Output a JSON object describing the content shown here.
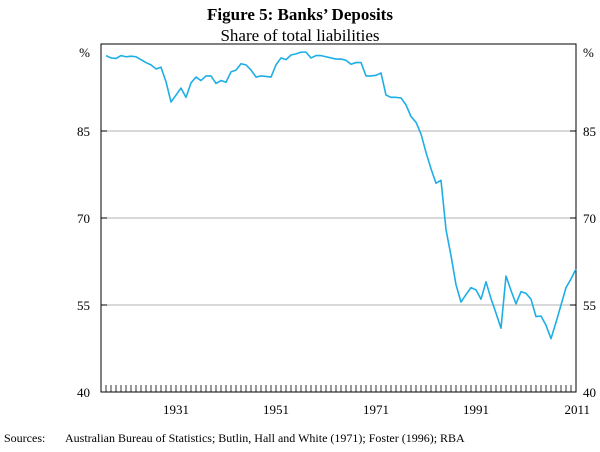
{
  "chart_data": {
    "type": "line",
    "title": "Figure 5: Banks’ Deposits",
    "subtitle": "Share of total liabilities",
    "left_unit": "%",
    "right_unit": "%",
    "ylim": [
      40,
      100
    ],
    "y_ticks": [
      40,
      55,
      70,
      85
    ],
    "y_tick_labels": [
      "40",
      "55",
      "70",
      "85"
    ],
    "xlim": [
      1916,
      2011
    ],
    "x_ticks": [
      1931,
      1951,
      1971,
      1991,
      2011
    ],
    "x_tick_labels": [
      "1931",
      "1951",
      "1971",
      "1991",
      "2011"
    ],
    "sources_label": "Sources:",
    "sources_text": "Australian Bureau of Statistics; Butlin, Hall and White (1971); Foster (1996); RBA",
    "line_color": "#1eaee6",
    "series": [
      {
        "name": "Banks’ deposits",
        "x": [
          1917,
          1918,
          1919,
          1920,
          1921,
          1922,
          1923,
          1924,
          1925,
          1926,
          1927,
          1928,
          1929,
          1930,
          1931,
          1932,
          1933,
          1934,
          1935,
          1936,
          1937,
          1938,
          1939,
          1940,
          1941,
          1942,
          1943,
          1944,
          1945,
          1946,
          1947,
          1948,
          1949,
          1950,
          1951,
          1952,
          1953,
          1954,
          1955,
          1956,
          1957,
          1958,
          1959,
          1960,
          1961,
          1962,
          1963,
          1964,
          1965,
          1966,
          1967,
          1968,
          1969,
          1970,
          1971,
          1972,
          1973,
          1974,
          1975,
          1976,
          1977,
          1978,
          1979,
          1980,
          1981,
          1982,
          1983,
          1984,
          1985,
          1986,
          1987,
          1988,
          1989,
          1990,
          1991,
          1992,
          1993,
          1994,
          1995,
          1996,
          1997,
          1998,
          1999,
          2000,
          2001,
          2002,
          2003,
          2004,
          2005,
          2006,
          2007,
          2008,
          2009,
          2010,
          2011
        ],
        "values": [
          98.0,
          97.6,
          97.5,
          98.0,
          97.8,
          97.9,
          97.8,
          97.3,
          96.8,
          96.4,
          95.7,
          96.0,
          93.5,
          90.0,
          91.2,
          92.4,
          90.8,
          93.3,
          94.3,
          93.7,
          94.5,
          94.5,
          93.2,
          93.7,
          93.4,
          95.2,
          95.5,
          96.6,
          96.4,
          95.5,
          94.3,
          94.5,
          94.4,
          94.3,
          96.4,
          97.6,
          97.3,
          98.1,
          98.3,
          98.6,
          98.6,
          97.6,
          98.0,
          98.0,
          97.8,
          97.6,
          97.4,
          97.4,
          97.2,
          96.5,
          96.8,
          96.8,
          94.5,
          94.5,
          94.6,
          95.0,
          91.2,
          90.8,
          90.8,
          90.7,
          89.5,
          87.5,
          86.5,
          84.5,
          81.3,
          78.5,
          76.0,
          76.5,
          68.0,
          63.5,
          58.5,
          55.5,
          56.8,
          58.0,
          57.6,
          56.0,
          59.0,
          56.1,
          53.6,
          51.0,
          60.0,
          57.5,
          55.2,
          57.3,
          57.0,
          56.0,
          53.0,
          53.1,
          51.5,
          49.2,
          52.0,
          55.0,
          58.0,
          59.5,
          61.2
        ]
      }
    ]
  }
}
